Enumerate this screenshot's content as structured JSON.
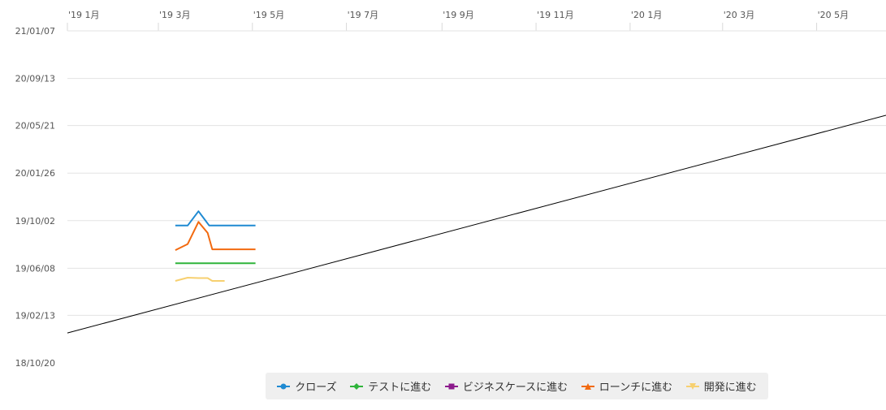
{
  "chart_data": {
    "type": "line",
    "x_axis": {
      "position": "top",
      "ticks": [
        "'19 1月",
        "'19 3月",
        "'19 5月",
        "'19 7月",
        "'19 9月",
        "'19 11月",
        "'20 1月",
        "'20 3月",
        "'20 5月"
      ],
      "tick_dates": [
        "2019-01-01",
        "2019-03-01",
        "2019-05-01",
        "2019-07-01",
        "2019-09-01",
        "2019-11-01",
        "2020-01-01",
        "2020-03-01",
        "2020-05-01"
      ],
      "range": [
        "2019-01-01",
        "2020-06-15"
      ]
    },
    "y_axis": {
      "ticks": [
        "18/10/20",
        "19/02/13",
        "19/06/08",
        "19/10/02",
        "20/01/26",
        "20/05/21",
        "20/09/13",
        "21/01/07"
      ],
      "tick_dates": [
        "2018-10-20",
        "2019-02-13",
        "2019-06-08",
        "2019-10-02",
        "2020-01-26",
        "2020-05-21",
        "2020-09-13",
        "2021-01-07"
      ],
      "range": [
        "2018-10-20",
        "2021-01-07"
      ]
    },
    "grid": true,
    "legend_position": "bottom",
    "reference_line": {
      "color": "#000000",
      "points": [
        {
          "x": "2019-01-01",
          "y": "2019-01-01"
        },
        {
          "x": "2020-06-15",
          "y": "2020-06-15"
        }
      ]
    },
    "series": [
      {
        "name": "クローズ",
        "color": "#1f8ad2",
        "marker": "circle",
        "points": [
          {
            "x": "2019-03-12",
            "y": "2019-09-20"
          },
          {
            "x": "2019-03-20",
            "y": "2019-09-20"
          },
          {
            "x": "2019-03-27",
            "y": "2019-10-25"
          },
          {
            "x": "2019-04-03",
            "y": "2019-09-20"
          },
          {
            "x": "2019-05-03",
            "y": "2019-09-20"
          }
        ]
      },
      {
        "name": "テストに進む",
        "color": "#2fb43a",
        "marker": "diamond",
        "points": [
          {
            "x": "2019-03-12",
            "y": "2019-06-20"
          },
          {
            "x": "2019-05-03",
            "y": "2019-06-20"
          }
        ]
      },
      {
        "name": "ビジネスケースに進む",
        "color": "#8c1a8c",
        "marker": "square",
        "points": []
      },
      {
        "name": "ローンチに進む",
        "color": "#f26a10",
        "marker": "triangle",
        "points": [
          {
            "x": "2019-03-12",
            "y": "2019-07-22"
          },
          {
            "x": "2019-03-20",
            "y": "2019-08-06"
          },
          {
            "x": "2019-03-27",
            "y": "2019-09-29"
          },
          {
            "x": "2019-04-02",
            "y": "2019-09-02"
          },
          {
            "x": "2019-04-05",
            "y": "2019-07-24"
          },
          {
            "x": "2019-05-03",
            "y": "2019-07-24"
          }
        ]
      },
      {
        "name": "開発に進む",
        "color": "#f7d070",
        "marker": "triangle-down",
        "points": [
          {
            "x": "2019-03-12",
            "y": "2019-05-08"
          },
          {
            "x": "2019-03-20",
            "y": "2019-05-16"
          },
          {
            "x": "2019-03-27",
            "y": "2019-05-15"
          },
          {
            "x": "2019-04-02",
            "y": "2019-05-15"
          },
          {
            "x": "2019-04-05",
            "y": "2019-05-08"
          },
          {
            "x": "2019-04-13",
            "y": "2019-05-08"
          }
        ]
      }
    ]
  }
}
